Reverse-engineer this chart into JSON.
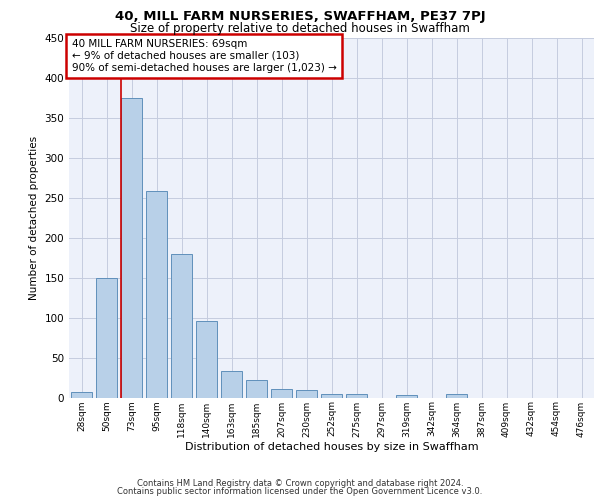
{
  "title_line1": "40, MILL FARM NURSERIES, SWAFFHAM, PE37 7PJ",
  "title_line2": "Size of property relative to detached houses in Swaffham",
  "xlabel": "Distribution of detached houses by size in Swaffham",
  "ylabel": "Number of detached properties",
  "categories": [
    "28sqm",
    "50sqm",
    "73sqm",
    "95sqm",
    "118sqm",
    "140sqm",
    "163sqm",
    "185sqm",
    "207sqm",
    "230sqm",
    "252sqm",
    "275sqm",
    "297sqm",
    "319sqm",
    "342sqm",
    "364sqm",
    "387sqm",
    "409sqm",
    "432sqm",
    "454sqm",
    "476sqm"
  ],
  "values": [
    7,
    150,
    374,
    258,
    179,
    96,
    33,
    22,
    11,
    10,
    5,
    4,
    0,
    3,
    0,
    4,
    0,
    0,
    0,
    0,
    0
  ],
  "bar_color": "#b8d0e8",
  "bar_edge_color": "#6090bb",
  "red_line_x": 2,
  "annotation_text": "40 MILL FARM NURSERIES: 69sqm\n← 9% of detached houses are smaller (103)\n90% of semi-detached houses are larger (1,023) →",
  "annotation_box_edge_color": "#cc0000",
  "ylim": [
    0,
    450
  ],
  "yticks": [
    0,
    50,
    100,
    150,
    200,
    250,
    300,
    350,
    400,
    450
  ],
  "footnote_line1": "Contains HM Land Registry data © Crown copyright and database right 2024.",
  "footnote_line2": "Contains public sector information licensed under the Open Government Licence v3.0.",
  "plot_bg_color": "#edf1fa",
  "grid_color": "#c5ccdf"
}
